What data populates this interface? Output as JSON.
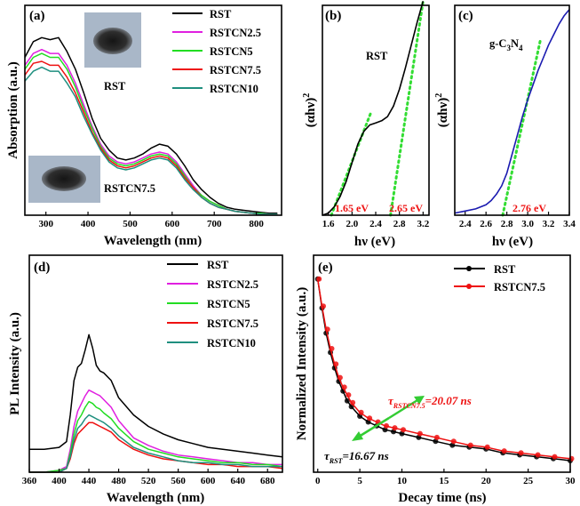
{
  "chart_data": [
    {
      "id": "a",
      "type": "line",
      "panel_label": "(a)",
      "xlabel": "Wavelength (nm)",
      "ylabel": "Absorption (a.u.)",
      "xlim": [
        250,
        860
      ],
      "ylim": [
        0,
        1
      ],
      "xticks": [
        300,
        400,
        500,
        600,
        700,
        800
      ],
      "series": [
        {
          "name": "RST",
          "color": "#000000",
          "x": [
            250,
            270,
            290,
            310,
            330,
            350,
            370,
            390,
            410,
            430,
            450,
            470,
            490,
            510,
            530,
            550,
            570,
            590,
            610,
            630,
            650,
            670,
            690,
            710,
            730,
            750,
            770,
            790,
            810,
            830,
            850
          ],
          "y": [
            0.8,
            0.88,
            0.9,
            0.89,
            0.9,
            0.83,
            0.74,
            0.62,
            0.49,
            0.39,
            0.33,
            0.29,
            0.28,
            0.29,
            0.31,
            0.34,
            0.36,
            0.35,
            0.31,
            0.25,
            0.18,
            0.13,
            0.09,
            0.06,
            0.04,
            0.03,
            0.025,
            0.02,
            0.015,
            0.01,
            0.01
          ]
        },
        {
          "name": "RSTCN2.5",
          "color": "#e020e0",
          "x": [
            250,
            270,
            290,
            310,
            330,
            350,
            370,
            390,
            410,
            430,
            450,
            470,
            490,
            510,
            530,
            550,
            570,
            590,
            610,
            630,
            650,
            670,
            690,
            710,
            730,
            750,
            770,
            790,
            810,
            830,
            850
          ],
          "y": [
            0.76,
            0.82,
            0.84,
            0.82,
            0.82,
            0.76,
            0.67,
            0.56,
            0.45,
            0.36,
            0.3,
            0.27,
            0.26,
            0.27,
            0.29,
            0.31,
            0.32,
            0.31,
            0.27,
            0.21,
            0.15,
            0.1,
            0.07,
            0.05,
            0.03,
            0.02,
            0.015,
            0.01,
            0.01,
            0.005,
            0.005
          ]
        },
        {
          "name": "RSTCN5",
          "color": "#22dd22",
          "x": [
            250,
            270,
            290,
            310,
            330,
            350,
            370,
            390,
            410,
            430,
            450,
            470,
            490,
            510,
            530,
            550,
            570,
            590,
            610,
            630,
            650,
            670,
            690,
            710,
            730,
            750,
            770,
            790,
            810,
            830,
            850
          ],
          "y": [
            0.74,
            0.8,
            0.82,
            0.8,
            0.8,
            0.74,
            0.65,
            0.54,
            0.44,
            0.35,
            0.29,
            0.26,
            0.25,
            0.26,
            0.28,
            0.3,
            0.31,
            0.3,
            0.26,
            0.2,
            0.14,
            0.1,
            0.07,
            0.05,
            0.03,
            0.02,
            0.015,
            0.01,
            0.01,
            0.005,
            0.005
          ]
        },
        {
          "name": "RSTCN7.5",
          "color": "#ee1111",
          "x": [
            250,
            270,
            290,
            310,
            330,
            350,
            370,
            390,
            410,
            430,
            450,
            470,
            490,
            510,
            530,
            550,
            570,
            590,
            610,
            630,
            650,
            670,
            690,
            710,
            730,
            750,
            770,
            790,
            810,
            830,
            850
          ],
          "y": [
            0.71,
            0.77,
            0.78,
            0.76,
            0.76,
            0.7,
            0.62,
            0.52,
            0.42,
            0.34,
            0.28,
            0.25,
            0.24,
            0.25,
            0.27,
            0.29,
            0.3,
            0.29,
            0.25,
            0.19,
            0.14,
            0.09,
            0.06,
            0.04,
            0.03,
            0.02,
            0.015,
            0.01,
            0.005,
            0.005,
            0.005
          ]
        },
        {
          "name": "RSTCN10",
          "color": "#1f8f7f",
          "x": [
            250,
            270,
            290,
            310,
            330,
            350,
            370,
            390,
            410,
            430,
            450,
            470,
            490,
            510,
            530,
            550,
            570,
            590,
            610,
            630,
            650,
            670,
            690,
            710,
            730,
            750,
            770,
            790,
            810,
            830,
            850
          ],
          "y": [
            0.68,
            0.73,
            0.75,
            0.73,
            0.73,
            0.67,
            0.6,
            0.5,
            0.41,
            0.33,
            0.27,
            0.24,
            0.23,
            0.24,
            0.26,
            0.28,
            0.29,
            0.28,
            0.24,
            0.18,
            0.13,
            0.09,
            0.06,
            0.04,
            0.03,
            0.02,
            0.015,
            0.01,
            0.005,
            0.005,
            0.005
          ]
        }
      ],
      "annotations": [
        "RST",
        "RSTCN7.5"
      ]
    },
    {
      "id": "b",
      "type": "line",
      "panel_label": "(b)",
      "title": "RST",
      "xlabel": "hν (eV)",
      "ylabel": "(αhν)",
      "ylabel_sup": "2",
      "xlim": [
        1.5,
        3.3
      ],
      "ylim": [
        0,
        1
      ],
      "xticks": [
        1.6,
        2.0,
        2.4,
        2.8,
        3.2
      ],
      "xtick_labels": [
        "1.6",
        "2.0",
        "2.4",
        "2.8",
        "3.2"
      ],
      "series": [
        {
          "name": "RST",
          "color": "#000000",
          "x": [
            1.5,
            1.6,
            1.7,
            1.8,
            1.9,
            2.0,
            2.1,
            2.2,
            2.3,
            2.4,
            2.5,
            2.6,
            2.7,
            2.8,
            2.9,
            3.0,
            3.1,
            3.2
          ],
          "y": [
            0.0,
            0.01,
            0.04,
            0.09,
            0.16,
            0.25,
            0.34,
            0.4,
            0.43,
            0.44,
            0.45,
            0.47,
            0.52,
            0.6,
            0.7,
            0.81,
            0.92,
            1.02
          ]
        }
      ],
      "fits": [
        {
          "x": [
            1.65,
            2.32
          ],
          "y": [
            0.0,
            0.49
          ]
        },
        {
          "x": [
            2.65,
            3.2
          ],
          "y": [
            0.0,
            1.02
          ]
        }
      ],
      "annotations": [
        "1.65 eV",
        "2.65 eV"
      ]
    },
    {
      "id": "c",
      "type": "line",
      "panel_label": "(c)",
      "title": "g-C3N4",
      "title_main": "g-C",
      "title_sub1": "3",
      "title_mid": "N",
      "title_sub2": "4",
      "xlabel": "hν (eV)",
      "ylabel": "(αhν)",
      "ylabel_sup": "2",
      "xlim": [
        2.3,
        3.4
      ],
      "ylim": [
        0,
        1
      ],
      "xticks": [
        2.4,
        2.6,
        2.8,
        3.0,
        3.2,
        3.4
      ],
      "xtick_labels": [
        "2.4",
        "2.6",
        "2.8",
        "3.0",
        "3.2",
        "3.4"
      ],
      "series": [
        {
          "name": "g-C3N4",
          "color": "#1a1ab0",
          "x": [
            2.3,
            2.4,
            2.5,
            2.6,
            2.65,
            2.7,
            2.75,
            2.8,
            2.85,
            2.9,
            2.95,
            3.0,
            3.05,
            3.1,
            3.15,
            3.2,
            3.25,
            3.3,
            3.35,
            3.4
          ],
          "y": [
            0.01,
            0.02,
            0.03,
            0.05,
            0.07,
            0.1,
            0.14,
            0.2,
            0.29,
            0.38,
            0.47,
            0.55,
            0.62,
            0.69,
            0.75,
            0.81,
            0.86,
            0.91,
            0.95,
            0.98
          ]
        }
      ],
      "fits": [
        {
          "x": [
            2.76,
            3.12
          ],
          "y": [
            0.0,
            0.83
          ]
        }
      ],
      "annotations": [
        "2.76 eV"
      ]
    },
    {
      "id": "d",
      "type": "line",
      "panel_label": "(d)",
      "xlabel": "Wavelength (nm)",
      "ylabel": "PL Intensity (a.u.)",
      "xlim": [
        360,
        700
      ],
      "ylim": [
        0,
        1
      ],
      "xticks": [
        360,
        400,
        440,
        480,
        520,
        560,
        600,
        640,
        680
      ],
      "series": [
        {
          "name": "RST",
          "color": "#000000",
          "x": [
            360,
            380,
            400,
            410,
            415,
            420,
            425,
            430,
            435,
            440,
            445,
            450,
            455,
            460,
            470,
            480,
            500,
            520,
            540,
            560,
            580,
            600,
            620,
            640,
            660,
            680,
            700
          ],
          "y": [
            0.12,
            0.12,
            0.13,
            0.16,
            0.3,
            0.48,
            0.55,
            0.57,
            0.64,
            0.72,
            0.65,
            0.56,
            0.53,
            0.52,
            0.48,
            0.39,
            0.3,
            0.24,
            0.2,
            0.17,
            0.15,
            0.13,
            0.12,
            0.11,
            0.1,
            0.09,
            0.08
          ]
        },
        {
          "name": "RSTCN2.5",
          "color": "#e020e0",
          "x": [
            360,
            380,
            400,
            410,
            415,
            420,
            425,
            430,
            435,
            440,
            445,
            450,
            455,
            460,
            470,
            480,
            500,
            520,
            540,
            560,
            580,
            600,
            620,
            640,
            660,
            680,
            700
          ],
          "y": [
            0.0,
            0.0,
            0.01,
            0.03,
            0.12,
            0.24,
            0.32,
            0.36,
            0.4,
            0.43,
            0.42,
            0.41,
            0.4,
            0.38,
            0.34,
            0.27,
            0.18,
            0.14,
            0.11,
            0.09,
            0.08,
            0.07,
            0.06,
            0.05,
            0.05,
            0.04,
            0.04
          ]
        },
        {
          "name": "RSTCN5",
          "color": "#22dd22",
          "x": [
            360,
            380,
            400,
            410,
            415,
            420,
            425,
            430,
            435,
            440,
            445,
            450,
            455,
            460,
            470,
            480,
            500,
            520,
            540,
            560,
            580,
            600,
            620,
            640,
            660,
            680,
            700
          ],
          "y": [
            0.0,
            0.0,
            0.01,
            0.02,
            0.1,
            0.2,
            0.27,
            0.3,
            0.34,
            0.37,
            0.36,
            0.34,
            0.33,
            0.31,
            0.28,
            0.23,
            0.16,
            0.12,
            0.1,
            0.08,
            0.07,
            0.06,
            0.05,
            0.05,
            0.04,
            0.04,
            0.03
          ]
        },
        {
          "name": "RSTCN7.5",
          "color": "#ee1111",
          "x": [
            360,
            380,
            400,
            410,
            415,
            420,
            425,
            430,
            435,
            440,
            445,
            450,
            455,
            460,
            470,
            480,
            500,
            520,
            540,
            560,
            580,
            600,
            620,
            640,
            660,
            680,
            700
          ],
          "y": [
            0.0,
            0.0,
            0.0,
            0.02,
            0.07,
            0.15,
            0.2,
            0.22,
            0.24,
            0.26,
            0.26,
            0.25,
            0.24,
            0.23,
            0.21,
            0.17,
            0.12,
            0.09,
            0.07,
            0.06,
            0.05,
            0.04,
            0.04,
            0.03,
            0.03,
            0.03,
            0.02
          ]
        },
        {
          "name": "RSTCN10",
          "color": "#1f8f7f",
          "x": [
            360,
            380,
            400,
            410,
            415,
            420,
            425,
            430,
            435,
            440,
            445,
            450,
            455,
            460,
            470,
            480,
            500,
            520,
            540,
            560,
            580,
            600,
            620,
            640,
            660,
            680,
            700
          ],
          "y": [
            0.0,
            0.0,
            0.0,
            0.02,
            0.08,
            0.17,
            0.23,
            0.25,
            0.28,
            0.3,
            0.29,
            0.28,
            0.27,
            0.26,
            0.23,
            0.19,
            0.13,
            0.1,
            0.08,
            0.06,
            0.05,
            0.05,
            0.04,
            0.04,
            0.03,
            0.03,
            0.03
          ]
        }
      ]
    },
    {
      "id": "e",
      "type": "line",
      "panel_label": "(e)",
      "xlabel": "Decay time (ns)",
      "ylabel": "Normalized Intensity (a.u.)",
      "xlim": [
        -0.5,
        30
      ],
      "ylim": [
        0,
        1
      ],
      "xticks": [
        0,
        5,
        10,
        15,
        20,
        25,
        30
      ],
      "series": [
        {
          "name": "RST",
          "color": "#000000",
          "x": [
            0,
            0.5,
            1,
            1.5,
            2,
            2.5,
            3,
            3.5,
            4,
            5,
            6,
            7,
            8,
            9,
            10,
            12,
            14,
            16,
            18,
            20,
            22,
            24,
            26,
            28,
            30
          ],
          "y": [
            1.0,
            0.85,
            0.72,
            0.62,
            0.54,
            0.47,
            0.42,
            0.37,
            0.34,
            0.29,
            0.26,
            0.24,
            0.22,
            0.21,
            0.2,
            0.18,
            0.16,
            0.14,
            0.13,
            0.12,
            0.1,
            0.09,
            0.08,
            0.07,
            0.06
          ]
        },
        {
          "name": "RSTCN7.5",
          "color": "#ee1111",
          "x": [
            0,
            0.5,
            1,
            1.5,
            2,
            2.5,
            3,
            3.5,
            4,
            5,
            6,
            7,
            8,
            9,
            10,
            12,
            14,
            16,
            18,
            20,
            22,
            24,
            26,
            28,
            30
          ],
          "y": [
            1.0,
            0.86,
            0.74,
            0.64,
            0.56,
            0.49,
            0.44,
            0.4,
            0.36,
            0.31,
            0.28,
            0.26,
            0.24,
            0.23,
            0.22,
            0.2,
            0.18,
            0.16,
            0.14,
            0.13,
            0.11,
            0.1,
            0.09,
            0.08,
            0.07
          ]
        }
      ],
      "annotations": [
        {
          "tau": "τ",
          "sub": "RSTCN7.5",
          "value": "=20.07 ns"
        },
        {
          "tau": "τ",
          "sub": "RST",
          "value": "=16.67 ns"
        }
      ]
    }
  ],
  "colors": {
    "axis": "#000000",
    "fit": "#33dd33",
    "note_red": "#ee1111",
    "arrow": "#33cc33",
    "photo_bg": "#a9b7c8",
    "powder": "#2a2a2a"
  }
}
